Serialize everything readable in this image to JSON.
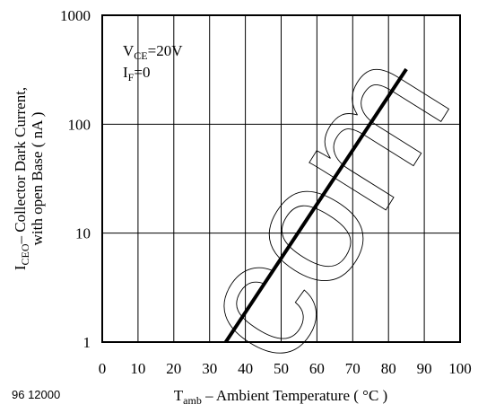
{
  "figure_id": "96 12000",
  "chart_data": {
    "type": "line",
    "xlim": [
      0,
      100
    ],
    "ylim": [
      1,
      1000
    ],
    "y_scale": "log",
    "x_ticks": [
      0,
      10,
      20,
      30,
      40,
      50,
      60,
      70,
      80,
      90,
      100
    ],
    "y_ticks": [
      1,
      10,
      100,
      1000
    ],
    "y_minor_gridlines": false,
    "x_gridlines_every": 10,
    "grid": true,
    "xlabel": {
      "main": "T",
      "sub": "amb",
      "rest": " – Ambient Temperature ( °C )"
    },
    "ylabel": {
      "line1_main": "I",
      "line1_sub": "CEO",
      "line1_rest": "– Collector Dark Current,",
      "line2": "with open Base ( nA )"
    },
    "annotations": [
      {
        "main": "V",
        "sub": "CE",
        "rest": "=20V"
      },
      {
        "main": "I",
        "sub": "F",
        "rest": "=0"
      }
    ],
    "series": [
      {
        "points": [
          [
            34.5,
            1
          ],
          [
            85,
            320
          ]
        ],
        "color": "#000000"
      }
    ],
    "watermark": "com"
  }
}
